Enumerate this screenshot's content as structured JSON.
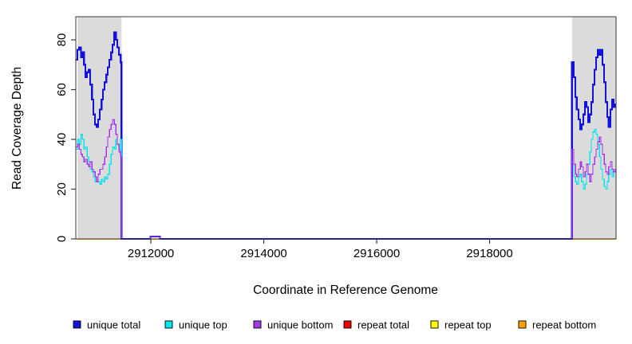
{
  "figure": {
    "background": "#ffffff"
  },
  "chart_data": {
    "type": "line",
    "title": "",
    "xlabel": "Coordinate in Reference Genome",
    "ylabel": "Read Coverage Depth",
    "xlim": [
      2910670,
      2920240
    ],
    "ylim": [
      0,
      89.3
    ],
    "xticks": [
      2912000,
      2914000,
      2916000,
      2918000
    ],
    "yticks": [
      0,
      20,
      40,
      60,
      80
    ],
    "grid": false,
    "legend_position": "bottom",
    "shaded_regions": {
      "color": "#DBDBDB",
      "ranges": [
        [
          2910700,
          2911480
        ],
        [
          2919460,
          2920240
        ]
      ]
    },
    "draw_order": [
      "repeat total",
      "repeat top",
      "repeat bottom",
      "unique total",
      "unique top",
      "unique bottom"
    ],
    "legend": [
      {
        "label": "unique total",
        "color": "#1212D9"
      },
      {
        "label": "unique top",
        "color": "#00E5EE"
      },
      {
        "label": "unique bottom",
        "color": "#A735EA"
      },
      {
        "label": "repeat total",
        "color": "#EE0000"
      },
      {
        "label": "repeat top",
        "color": "#FFFF00"
      },
      {
        "label": "repeat bottom",
        "color": "#FFA000"
      }
    ],
    "series": [
      {
        "name": "unique total",
        "color": "#1212D9",
        "line_width": 2.2,
        "points": [
          [
            2910670,
            72
          ],
          [
            2910700,
            76
          ],
          [
            2910730,
            77
          ],
          [
            2910760,
            73
          ],
          [
            2910785,
            75
          ],
          [
            2910815,
            70
          ],
          [
            2910840,
            65
          ],
          [
            2910870,
            67
          ],
          [
            2910900,
            68
          ],
          [
            2910925,
            62
          ],
          [
            2910955,
            56
          ],
          [
            2910980,
            50
          ],
          [
            2911010,
            46
          ],
          [
            2911040,
            45
          ],
          [
            2911065,
            48
          ],
          [
            2911095,
            52
          ],
          [
            2911125,
            56
          ],
          [
            2911150,
            60
          ],
          [
            2911180,
            63
          ],
          [
            2911210,
            66
          ],
          [
            2911235,
            69
          ],
          [
            2911265,
            72
          ],
          [
            2911295,
            75
          ],
          [
            2911320,
            78
          ],
          [
            2911350,
            83
          ],
          [
            2911380,
            80
          ],
          [
            2911405,
            77
          ],
          [
            2911435,
            74
          ],
          [
            2911465,
            71
          ],
          [
            2911480,
            71
          ],
          [
            2911480,
            0
          ],
          [
            2911990,
            0
          ],
          [
            2911990,
            1
          ],
          [
            2912160,
            1
          ],
          [
            2912160,
            0
          ],
          [
            2919460,
            0
          ],
          [
            2919460,
            71
          ],
          [
            2919490,
            65
          ],
          [
            2919520,
            57
          ],
          [
            2919545,
            52
          ],
          [
            2919575,
            48
          ],
          [
            2919605,
            44
          ],
          [
            2919630,
            46
          ],
          [
            2919660,
            50
          ],
          [
            2919690,
            55
          ],
          [
            2919715,
            53
          ],
          [
            2919745,
            47
          ],
          [
            2919775,
            50
          ],
          [
            2919800,
            55
          ],
          [
            2919830,
            62
          ],
          [
            2919860,
            68
          ],
          [
            2919885,
            73
          ],
          [
            2919915,
            76
          ],
          [
            2919945,
            74
          ],
          [
            2919970,
            76
          ],
          [
            2920000,
            70
          ],
          [
            2920030,
            63
          ],
          [
            2920055,
            55
          ],
          [
            2920085,
            49
          ],
          [
            2920110,
            45
          ],
          [
            2920140,
            52
          ],
          [
            2920170,
            56
          ],
          [
            2920195,
            53
          ],
          [
            2920225,
            54
          ],
          [
            2920240,
            54
          ]
        ]
      },
      {
        "name": "unique top",
        "color": "#00E5EE",
        "line_width": 1.3,
        "points": [
          [
            2910670,
            36
          ],
          [
            2910700,
            40
          ],
          [
            2910730,
            38
          ],
          [
            2910760,
            42
          ],
          [
            2910785,
            40
          ],
          [
            2910815,
            36
          ],
          [
            2910840,
            37
          ],
          [
            2910870,
            33
          ],
          [
            2910900,
            31
          ],
          [
            2910925,
            28
          ],
          [
            2910955,
            27
          ],
          [
            2910980,
            25
          ],
          [
            2911010,
            23
          ],
          [
            2911040,
            24
          ],
          [
            2911065,
            23
          ],
          [
            2911095,
            22
          ],
          [
            2911125,
            24
          ],
          [
            2911150,
            23
          ],
          [
            2911180,
            25
          ],
          [
            2911210,
            24
          ],
          [
            2911235,
            26
          ],
          [
            2911265,
            30
          ],
          [
            2911295,
            34
          ],
          [
            2911320,
            37
          ],
          [
            2911350,
            36
          ],
          [
            2911380,
            40
          ],
          [
            2911405,
            38
          ],
          [
            2911435,
            36
          ],
          [
            2911465,
            40
          ],
          [
            2911480,
            35
          ],
          [
            2911480,
            0
          ],
          [
            2911990,
            0
          ],
          [
            2911990,
            1
          ],
          [
            2912160,
            1
          ],
          [
            2912160,
            0
          ],
          [
            2919460,
            0
          ],
          [
            2919460,
            31
          ],
          [
            2919490,
            25
          ],
          [
            2919520,
            23
          ],
          [
            2919545,
            22
          ],
          [
            2919575,
            25
          ],
          [
            2919605,
            26
          ],
          [
            2919630,
            23
          ],
          [
            2919660,
            20
          ],
          [
            2919690,
            22
          ],
          [
            2919715,
            26
          ],
          [
            2919745,
            30
          ],
          [
            2919775,
            35
          ],
          [
            2919800,
            40
          ],
          [
            2919830,
            43
          ],
          [
            2919860,
            44
          ],
          [
            2919885,
            42
          ],
          [
            2919915,
            38
          ],
          [
            2919945,
            33
          ],
          [
            2919970,
            28
          ],
          [
            2920000,
            24
          ],
          [
            2920030,
            21
          ],
          [
            2920055,
            20
          ],
          [
            2920085,
            23
          ],
          [
            2920110,
            26
          ],
          [
            2920140,
            28
          ],
          [
            2920170,
            25
          ],
          [
            2920195,
            27
          ],
          [
            2920225,
            27
          ],
          [
            2920240,
            27
          ]
        ]
      },
      {
        "name": "unique bottom",
        "color": "#A735EA",
        "line_width": 1.3,
        "points": [
          [
            2910670,
            37
          ],
          [
            2910700,
            38
          ],
          [
            2910730,
            36
          ],
          [
            2910760,
            34
          ],
          [
            2910785,
            33
          ],
          [
            2910815,
            31
          ],
          [
            2910840,
            32
          ],
          [
            2910870,
            30
          ],
          [
            2910900,
            29
          ],
          [
            2910925,
            31
          ],
          [
            2910955,
            28
          ],
          [
            2910980,
            27
          ],
          [
            2911010,
            25
          ],
          [
            2911040,
            23
          ],
          [
            2911065,
            26
          ],
          [
            2911095,
            28
          ],
          [
            2911125,
            28
          ],
          [
            2911150,
            30
          ],
          [
            2911180,
            33
          ],
          [
            2911210,
            37
          ],
          [
            2911235,
            41
          ],
          [
            2911265,
            44
          ],
          [
            2911295,
            46
          ],
          [
            2911320,
            48
          ],
          [
            2911350,
            46
          ],
          [
            2911380,
            42
          ],
          [
            2911405,
            38
          ],
          [
            2911435,
            35
          ],
          [
            2911465,
            33
          ],
          [
            2911480,
            33
          ],
          [
            2911480,
            0
          ],
          [
            2911990,
            0
          ],
          [
            2911990,
            1
          ],
          [
            2912160,
            1
          ],
          [
            2912160,
            0
          ],
          [
            2919460,
            0
          ],
          [
            2919460,
            36
          ],
          [
            2919490,
            30
          ],
          [
            2919520,
            26
          ],
          [
            2919545,
            25
          ],
          [
            2919575,
            28
          ],
          [
            2919605,
            31
          ],
          [
            2919630,
            29
          ],
          [
            2919660,
            25
          ],
          [
            2919690,
            27
          ],
          [
            2919715,
            30
          ],
          [
            2919745,
            26
          ],
          [
            2919775,
            23
          ],
          [
            2919800,
            26
          ],
          [
            2919830,
            30
          ],
          [
            2919860,
            33
          ],
          [
            2919885,
            36
          ],
          [
            2919915,
            39
          ],
          [
            2919945,
            41
          ],
          [
            2919970,
            38
          ],
          [
            2920000,
            34
          ],
          [
            2920030,
            30
          ],
          [
            2920055,
            27
          ],
          [
            2920085,
            26
          ],
          [
            2920110,
            29
          ],
          [
            2920140,
            31
          ],
          [
            2920170,
            28
          ],
          [
            2920195,
            27
          ],
          [
            2920225,
            28
          ],
          [
            2920240,
            28
          ]
        ]
      },
      {
        "name": "repeat total",
        "color": "#EE0000",
        "line_width": 1.5,
        "points": [
          [
            2910670,
            0
          ],
          [
            2920240,
            0
          ]
        ]
      },
      {
        "name": "repeat top",
        "color": "#FFFF00",
        "line_width": 1.5,
        "points": [
          [
            2910670,
            0
          ],
          [
            2920240,
            0
          ]
        ]
      },
      {
        "name": "repeat bottom",
        "color": "#FFA000",
        "line_width": 1.5,
        "points": [
          [
            2910670,
            0
          ],
          [
            2920240,
            0
          ]
        ]
      }
    ]
  }
}
